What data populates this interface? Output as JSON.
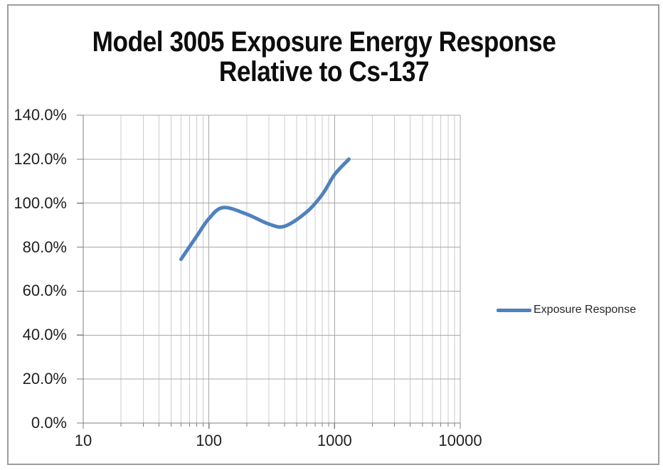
{
  "chart": {
    "title_line1": "Model 3005 Exposure Energy Response",
    "title_line2": "Relative to Cs-137",
    "legend": {
      "label": "Exposure Response"
    }
  },
  "chart_data": {
    "type": "line",
    "title": "Model 3005 Exposure Energy Response Relative to Cs-137",
    "xlabel": "",
    "ylabel": "",
    "x_axis": {
      "scale": "log",
      "min": 10,
      "max": 10000,
      "tick_values": [
        10,
        100,
        1000,
        10000
      ],
      "tick_labels": [
        "10",
        "100",
        "1000",
        "10000"
      ],
      "minor_gridlines": true
    },
    "y_axis": {
      "min": 0,
      "max": 140,
      "step": 20,
      "tick_labels": [
        "0.0%",
        "20.0%",
        "40.0%",
        "60.0%",
        "80.0%",
        "100.0%",
        "120.0%",
        "140.0%"
      ],
      "unit": "percent"
    },
    "grid": true,
    "legend_position": "right",
    "series": [
      {
        "name": "Exposure Response",
        "color": "#4F81BD",
        "points_x_keV": [
          60,
          80,
          100,
          130,
          200,
          300,
          400,
          600,
          800,
          1000,
          1300
        ],
        "points_y_percent": [
          74.5,
          85,
          93,
          98,
          95,
          90.5,
          89.5,
          96,
          104,
          113,
          120
        ]
      }
    ]
  },
  "colors": {
    "series_line": "#4F81BD",
    "grid_minor": "#CDCDCD",
    "grid_major": "#A8A8A8",
    "axis_line": "#7F7F7F",
    "outer_border": "#9C9C9C",
    "title_text": "#0D0D0D",
    "tick_text": "#1F1F1F",
    "legend_text": "#262626"
  }
}
